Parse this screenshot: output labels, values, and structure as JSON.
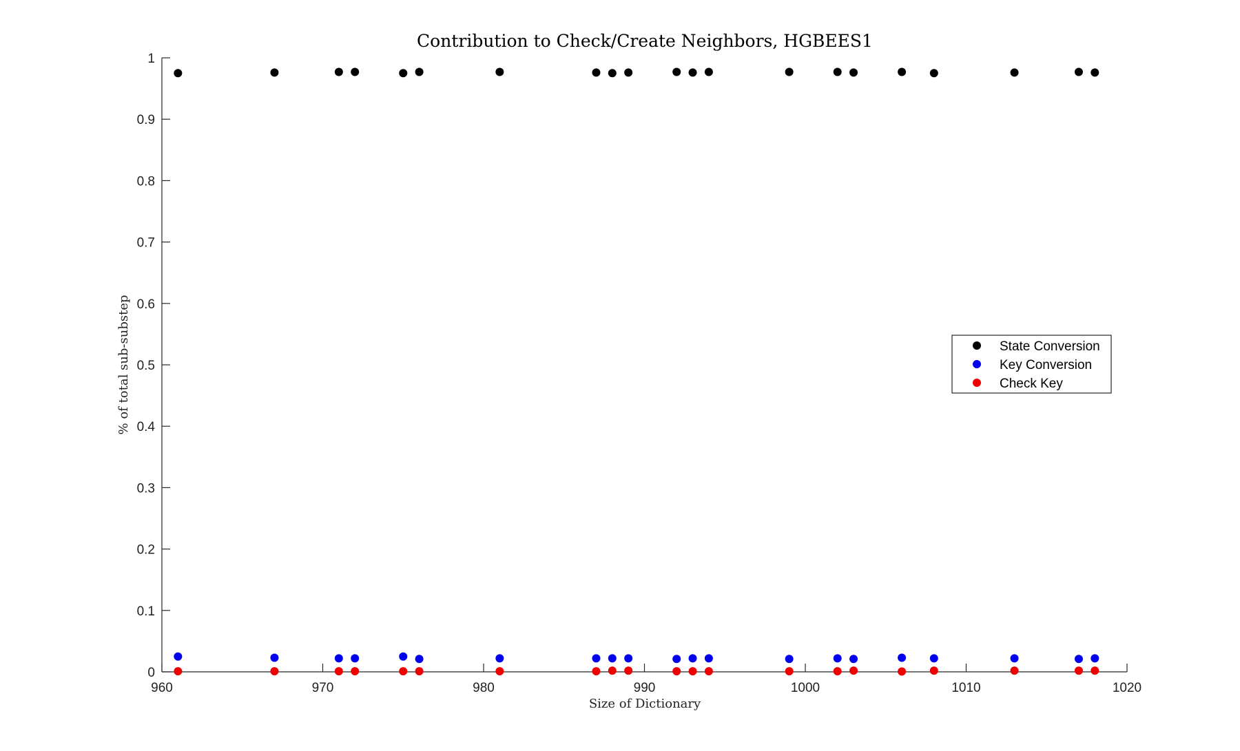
{
  "chart_data": {
    "type": "scatter",
    "title": "Contribution to Check/Create Neighbors, HGBEES1",
    "xlabel": "Size of Dictionary",
    "ylabel": "% of total sub-substep",
    "xlim": [
      960,
      1020
    ],
    "ylim": [
      0,
      1
    ],
    "xticks": [
      960,
      970,
      980,
      990,
      1000,
      1010,
      1020
    ],
    "yticks": [
      0,
      0.1,
      0.2,
      0.3,
      0.4,
      0.5,
      0.6,
      0.7,
      0.8,
      0.9,
      1
    ],
    "grid": false,
    "legend_position": "right",
    "x": [
      961,
      967,
      971,
      972,
      975,
      976,
      981,
      987,
      988,
      989,
      992,
      993,
      994,
      999,
      1002,
      1003,
      1006,
      1008,
      1013,
      1017,
      1018
    ],
    "series": [
      {
        "name": "State Conversion",
        "color": "#000000",
        "values": [
          0.975,
          0.976,
          0.977,
          0.977,
          0.975,
          0.977,
          0.977,
          0.976,
          0.975,
          0.976,
          0.977,
          0.976,
          0.977,
          0.977,
          0.977,
          0.976,
          0.977,
          0.975,
          0.976,
          0.977,
          0.976
        ]
      },
      {
        "name": "Key Conversion",
        "color": "#0000ee",
        "values": [
          0.025,
          0.023,
          0.022,
          0.022,
          0.025,
          0.021,
          0.022,
          0.022,
          0.022,
          0.022,
          0.021,
          0.022,
          0.022,
          0.021,
          0.022,
          0.021,
          0.023,
          0.022,
          0.022,
          0.021,
          0.022
        ]
      },
      {
        "name": "Check Key",
        "color": "#ee0000",
        "values": [
          0.001,
          0.001,
          0.001,
          0.001,
          0.001,
          0.001,
          0.001,
          0.001,
          0.002,
          0.002,
          0.001,
          0.001,
          0.001,
          0.001,
          0.001,
          0.002,
          0.0005,
          0.002,
          0.002,
          0.002,
          0.002
        ]
      }
    ]
  }
}
